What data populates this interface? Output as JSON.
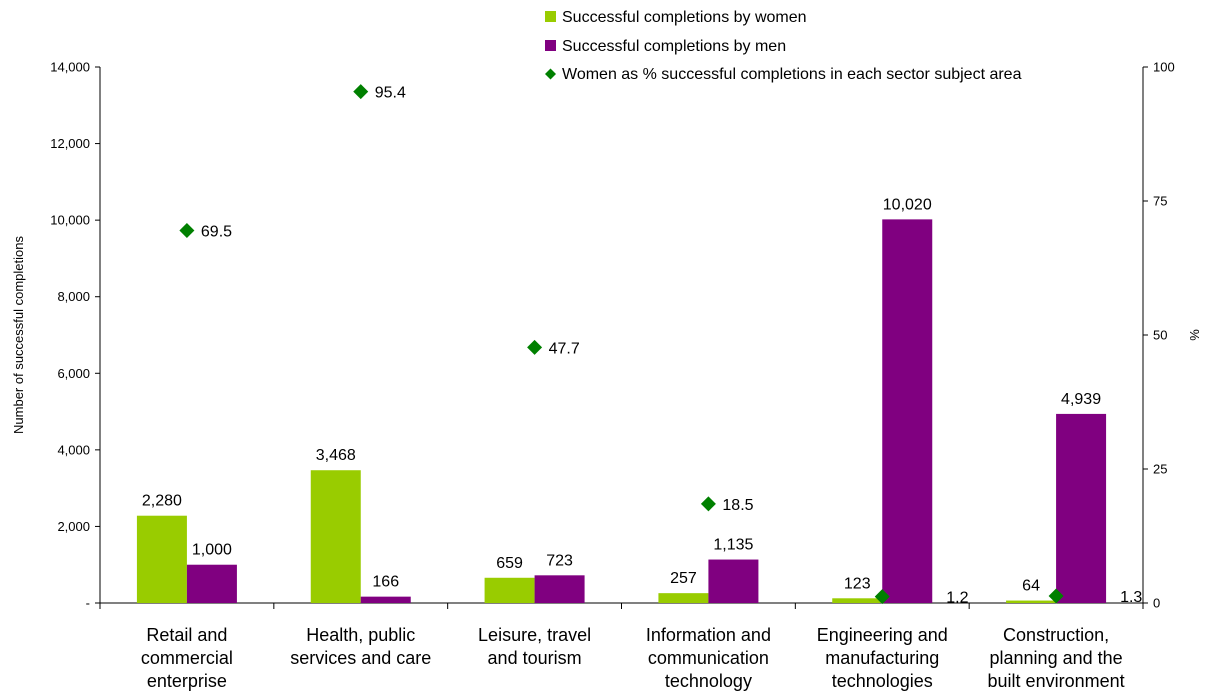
{
  "chart_data": {
    "type": "bar",
    "categories": [
      [
        "Retail and",
        "commercial",
        "enterprise"
      ],
      [
        "Health, public",
        "services and care"
      ],
      [
        "Leisure, travel",
        "and tourism"
      ],
      [
        "Information and",
        "communication",
        "technology"
      ],
      [
        "Engineering and",
        "manufacturing",
        "technologies"
      ],
      [
        "Construction,",
        "planning and the",
        "built environment"
      ]
    ],
    "series": [
      {
        "name": "Successful completions by women",
        "type": "bar",
        "axis": "left",
        "color": "#99cc00",
        "values": [
          2280,
          3468,
          659,
          257,
          123,
          64
        ],
        "labels": [
          "2,280",
          "3,468",
          "659",
          "257",
          "123",
          "64"
        ]
      },
      {
        "name": "Successful completions by men",
        "type": "bar",
        "axis": "left",
        "color": "#800080",
        "values": [
          1000,
          166,
          723,
          1135,
          10020,
          4939
        ],
        "labels": [
          "1,000",
          "166",
          "723",
          "1,135",
          "10,020",
          "4,939"
        ]
      },
      {
        "name": "Women as % successful completions in each sector subject area",
        "type": "scatter",
        "axis": "right",
        "color": "#008000",
        "values": [
          69.5,
          95.4,
          47.7,
          18.5,
          1.2,
          1.3
        ],
        "labels": [
          "69.5",
          "95.4",
          "47.7",
          "18.5",
          "1.2",
          "1.3"
        ]
      }
    ],
    "ylabel": "Number of successful completions",
    "y2label": "%",
    "ylim": [
      0,
      14000
    ],
    "y2lim": [
      0,
      100
    ],
    "yticks": [
      {
        "v": 0,
        "t": "-"
      },
      {
        "v": 2000,
        "t": "2,000"
      },
      {
        "v": 4000,
        "t": "4,000"
      },
      {
        "v": 6000,
        "t": "6,000"
      },
      {
        "v": 8000,
        "t": "8,000"
      },
      {
        "v": 10000,
        "t": "10,000"
      },
      {
        "v": 12000,
        "t": "12,000"
      },
      {
        "v": 14000,
        "t": "14,000"
      }
    ],
    "y2ticks": [
      {
        "v": 0,
        "t": "0"
      },
      {
        "v": 25,
        "t": "25"
      },
      {
        "v": 50,
        "t": "50"
      },
      {
        "v": 75,
        "t": "75"
      },
      {
        "v": 100,
        "t": "100"
      }
    ],
    "grid": false,
    "legend": "top-center"
  }
}
